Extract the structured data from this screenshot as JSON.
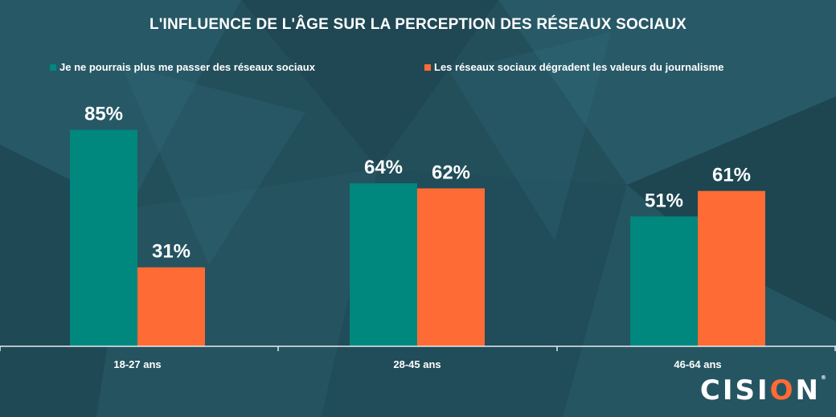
{
  "chart_data": {
    "type": "bar",
    "title": "L'INFLUENCE DE L'ÂGE SUR LA PERCEPTION DES RÉSEAUX SOCIAUX",
    "categories": [
      "18-27 ans",
      "28-45 ans",
      "46-64 ans"
    ],
    "series": [
      {
        "name": "Je ne pourrais plus me passer des réseaux sociaux",
        "values": [
          85,
          64,
          51
        ],
        "labels": [
          "85%",
          "64%",
          "51%"
        ],
        "color": "#00877e"
      },
      {
        "name": "Les réseaux sociaux dégradent les valeurs du journalisme",
        "values": [
          31,
          62,
          61
        ],
        "labels": [
          "31%",
          "62%",
          "61%"
        ],
        "color": "#ff6b35"
      }
    ],
    "ylim": [
      0,
      100
    ],
    "grid": false,
    "legend": "top"
  },
  "brand": {
    "logo_prefix": "CISI",
    "logo_o": "O",
    "logo_suffix": "N",
    "logo_mark": "®"
  },
  "colors": {
    "background": "#234f5b",
    "axis": "#e6ecee",
    "label": "#ffffff"
  }
}
